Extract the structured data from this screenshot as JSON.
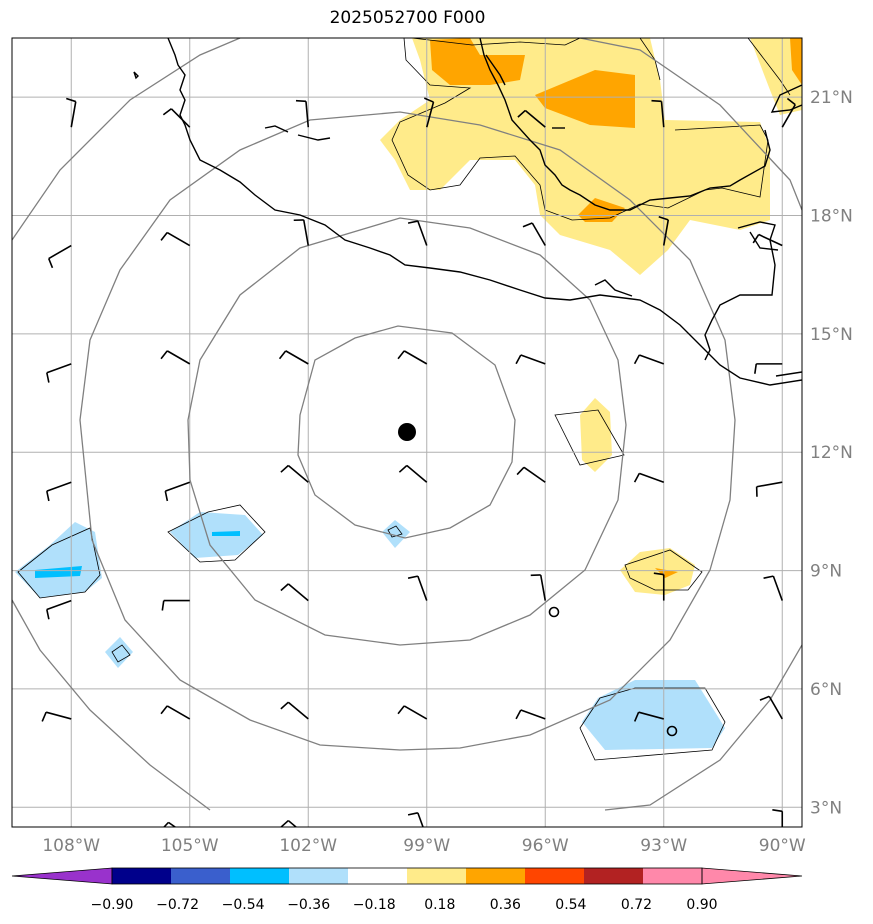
{
  "title": "2025052700 F000",
  "colors": {
    "pos_036": "#ffeb8a",
    "pos_054": "#ffa500",
    "neg_036": "#b0e0fb",
    "neg_054": "#00bfff",
    "grid": "#b0b0b0",
    "range_rings": "#808080",
    "coast": "#000000"
  },
  "map": {
    "lon_range": [
      -109.5,
      -89.5
    ],
    "lat_range": [
      2.5,
      22.5
    ],
    "lon_ticks": [
      -108,
      -105,
      -102,
      -99,
      -96,
      -93,
      -90
    ],
    "lat_ticks": [
      3,
      6,
      9,
      12,
      15,
      18,
      21
    ],
    "lon_labels": [
      "108°W",
      "105°W",
      "102°W",
      "99°W",
      "96°W",
      "93°W",
      "90°W"
    ],
    "lat_labels": [
      "3°N",
      "6°N",
      "9°N",
      "12°N",
      "15°N",
      "18°N",
      "21°N"
    ],
    "center_marker": {
      "lon": -99.0,
      "lat": 12.6
    },
    "open_markers": [
      {
        "lon": -96.0,
        "lat": 8.0
      },
      {
        "lon": -93.0,
        "lat": 5.0
      }
    ],
    "range_ring_radii_deg": [
      2.7,
      5.5,
      8.2,
      11.0
    ]
  },
  "colorbar": {
    "labels": [
      "−0.90",
      "−0.72",
      "−0.54",
      "−0.36",
      "−0.18",
      "0.18",
      "0.36",
      "0.54",
      "0.72",
      "0.90"
    ],
    "colors": [
      "#9932cc",
      "#00008b",
      "#3a5fcd",
      "#00bfff",
      "#b0e0fb",
      "#ffffff",
      "#ffeb8a",
      "#ffa500",
      "#ff4500",
      "#b22222",
      "#ff88aa",
      "#ff88aa"
    ]
  }
}
